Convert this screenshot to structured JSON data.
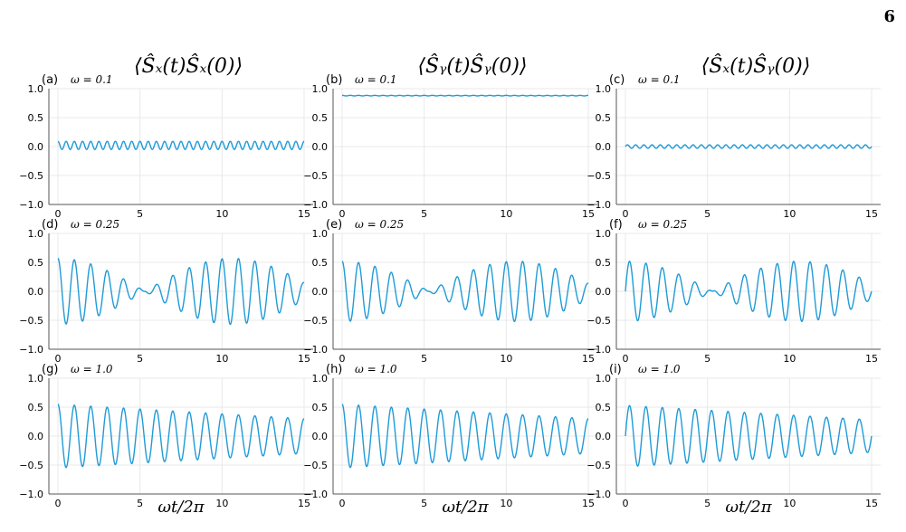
{
  "page": {
    "number": "6"
  },
  "colors": {
    "series": "#1f9bd7",
    "axis": "#555555",
    "grid": "#e8e8e8",
    "text": "#000000"
  },
  "columns": [
    {
      "title": "⟨Ŝₓ(t)Ŝₓ(0)⟩"
    },
    {
      "title": "⟨Ŝᵧ(t)Ŝᵧ(0)⟩"
    },
    {
      "title": "⟨Ŝₓ(t)Ŝᵧ(0)⟩"
    }
  ],
  "xlabel": "ωt/2π",
  "chart_data": [
    {
      "type": "line",
      "panel": "(a)",
      "omega_label": "ω = 0.1",
      "xlim": [
        0,
        15
      ],
      "ylim": [
        -1.0,
        1.0
      ],
      "xticks": [
        0,
        5,
        10,
        15
      ],
      "yticks": [
        -1.0,
        -0.5,
        0.0,
        0.5,
        1.0
      ],
      "grid": true,
      "curve": {
        "offset": 0.02,
        "amp_start": 0.07,
        "amp_end": 0.07,
        "cycles_per_unit": 2.0,
        "phase": 0,
        "beat_period": 0
      }
    },
    {
      "type": "line",
      "panel": "(b)",
      "omega_label": "ω = 0.1",
      "xlim": [
        0,
        15
      ],
      "ylim": [
        -1.0,
        1.0
      ],
      "xticks": [
        0,
        5,
        10,
        15
      ],
      "yticks": [
        -1.0,
        -0.5,
        0.0,
        0.5,
        1.0
      ],
      "grid": true,
      "curve": {
        "offset": 0.88,
        "amp_start": 0.005,
        "amp_end": 0.005,
        "cycles_per_unit": 2.0,
        "phase": 0,
        "beat_period": 0
      }
    },
    {
      "type": "line",
      "panel": "(c)",
      "omega_label": "ω = 0.1",
      "xlim": [
        0,
        15
      ],
      "ylim": [
        -1.0,
        1.0
      ],
      "xticks": [
        0,
        5,
        10,
        15
      ],
      "yticks": [
        -1.0,
        -0.5,
        0.0,
        0.5,
        1.0
      ],
      "grid": true,
      "curve": {
        "offset": 0.0,
        "amp_start": 0.03,
        "amp_end": 0.03,
        "cycles_per_unit": 2.0,
        "phase": 90,
        "beat_period": 0
      }
    },
    {
      "type": "line",
      "panel": "(d)",
      "omega_label": "ω = 0.25",
      "xlim": [
        0,
        15
      ],
      "ylim": [
        -1.0,
        1.0
      ],
      "xticks": [
        0,
        5,
        10,
        15
      ],
      "yticks": [
        -1.0,
        -0.5,
        0.0,
        0.5,
        1.0
      ],
      "grid": true,
      "curve": {
        "offset": 0.0,
        "amp_start": 0.57,
        "amp_end": 0.57,
        "cycles_per_unit": 1.0,
        "phase": 0,
        "beat_period": 10.6
      }
    },
    {
      "type": "line",
      "panel": "(e)",
      "omega_label": "ω = 0.25",
      "xlim": [
        0,
        15
      ],
      "ylim": [
        -1.0,
        1.0
      ],
      "xticks": [
        0,
        5,
        10,
        15
      ],
      "yticks": [
        -1.0,
        -0.5,
        0.0,
        0.5,
        1.0
      ],
      "grid": true,
      "curve": {
        "offset": 0.0,
        "amp_start": 0.52,
        "amp_end": 0.52,
        "cycles_per_unit": 1.0,
        "phase": 0,
        "beat_period": 10.6
      }
    },
    {
      "type": "line",
      "panel": "(f)",
      "omega_label": "ω = 0.25",
      "xlim": [
        0,
        15
      ],
      "ylim": [
        -1.0,
        1.0
      ],
      "xticks": [
        0,
        5,
        10,
        15
      ],
      "yticks": [
        -1.0,
        -0.5,
        0.0,
        0.5,
        1.0
      ],
      "grid": true,
      "curve": {
        "offset": 0.0,
        "amp_start": 0.52,
        "amp_end": 0.52,
        "cycles_per_unit": 1.0,
        "phase": 90,
        "beat_period": 10.6
      }
    },
    {
      "type": "line",
      "panel": "(g)",
      "omega_label": "ω = 1.0",
      "xlim": [
        0,
        15
      ],
      "ylim": [
        -1.0,
        1.0
      ],
      "xticks": [
        0,
        5,
        10,
        15
      ],
      "yticks": [
        -1.0,
        -0.5,
        0.0,
        0.5,
        1.0
      ],
      "grid": true,
      "curve": {
        "offset": 0.0,
        "amp_start": 0.55,
        "amp_end": 0.3,
        "cycles_per_unit": 1.0,
        "phase": 0,
        "beat_period": 0
      }
    },
    {
      "type": "line",
      "panel": "(h)",
      "omega_label": "ω = 1.0",
      "xlim": [
        0,
        15
      ],
      "ylim": [
        -1.0,
        1.0
      ],
      "xticks": [
        0,
        5,
        10,
        15
      ],
      "yticks": [
        -1.0,
        -0.5,
        0.0,
        0.5,
        1.0
      ],
      "grid": true,
      "curve": {
        "offset": 0.0,
        "amp_start": 0.55,
        "amp_end": 0.3,
        "cycles_per_unit": 1.0,
        "phase": 0,
        "beat_period": 0
      }
    },
    {
      "type": "line",
      "panel": "(i)",
      "omega_label": "ω = 1.0",
      "xlim": [
        0,
        15
      ],
      "ylim": [
        -1.0,
        1.0
      ],
      "xticks": [
        0,
        5,
        10,
        15
      ],
      "yticks": [
        -1.0,
        -0.5,
        0.0,
        0.5,
        1.0
      ],
      "grid": true,
      "curve": {
        "offset": 0.0,
        "amp_start": 0.53,
        "amp_end": 0.28,
        "cycles_per_unit": 1.0,
        "phase": 90,
        "beat_period": 0
      }
    }
  ]
}
